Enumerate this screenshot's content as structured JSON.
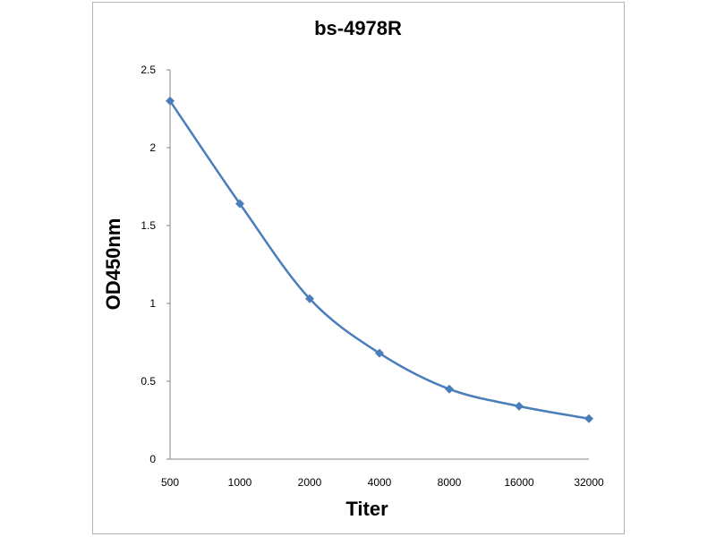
{
  "chart_data": {
    "type": "line",
    "title": "bs-4978R",
    "xlabel": "Titer",
    "ylabel": "OD450nm",
    "categories": [
      "500",
      "1000",
      "2000",
      "4000",
      "8000",
      "16000",
      "32000"
    ],
    "series": [
      {
        "values": [
          2.3,
          1.64,
          1.03,
          0.68,
          0.45,
          0.34,
          0.26
        ]
      }
    ],
    "ylim": [
      0,
      2.5
    ],
    "yticks": [
      "0",
      "0.5",
      "1",
      "1.5",
      "2",
      "2.5"
    ],
    "grid": false,
    "legend": "none",
    "line_color": "#4A7EBB",
    "marker": "diamond",
    "smooth": true
  }
}
